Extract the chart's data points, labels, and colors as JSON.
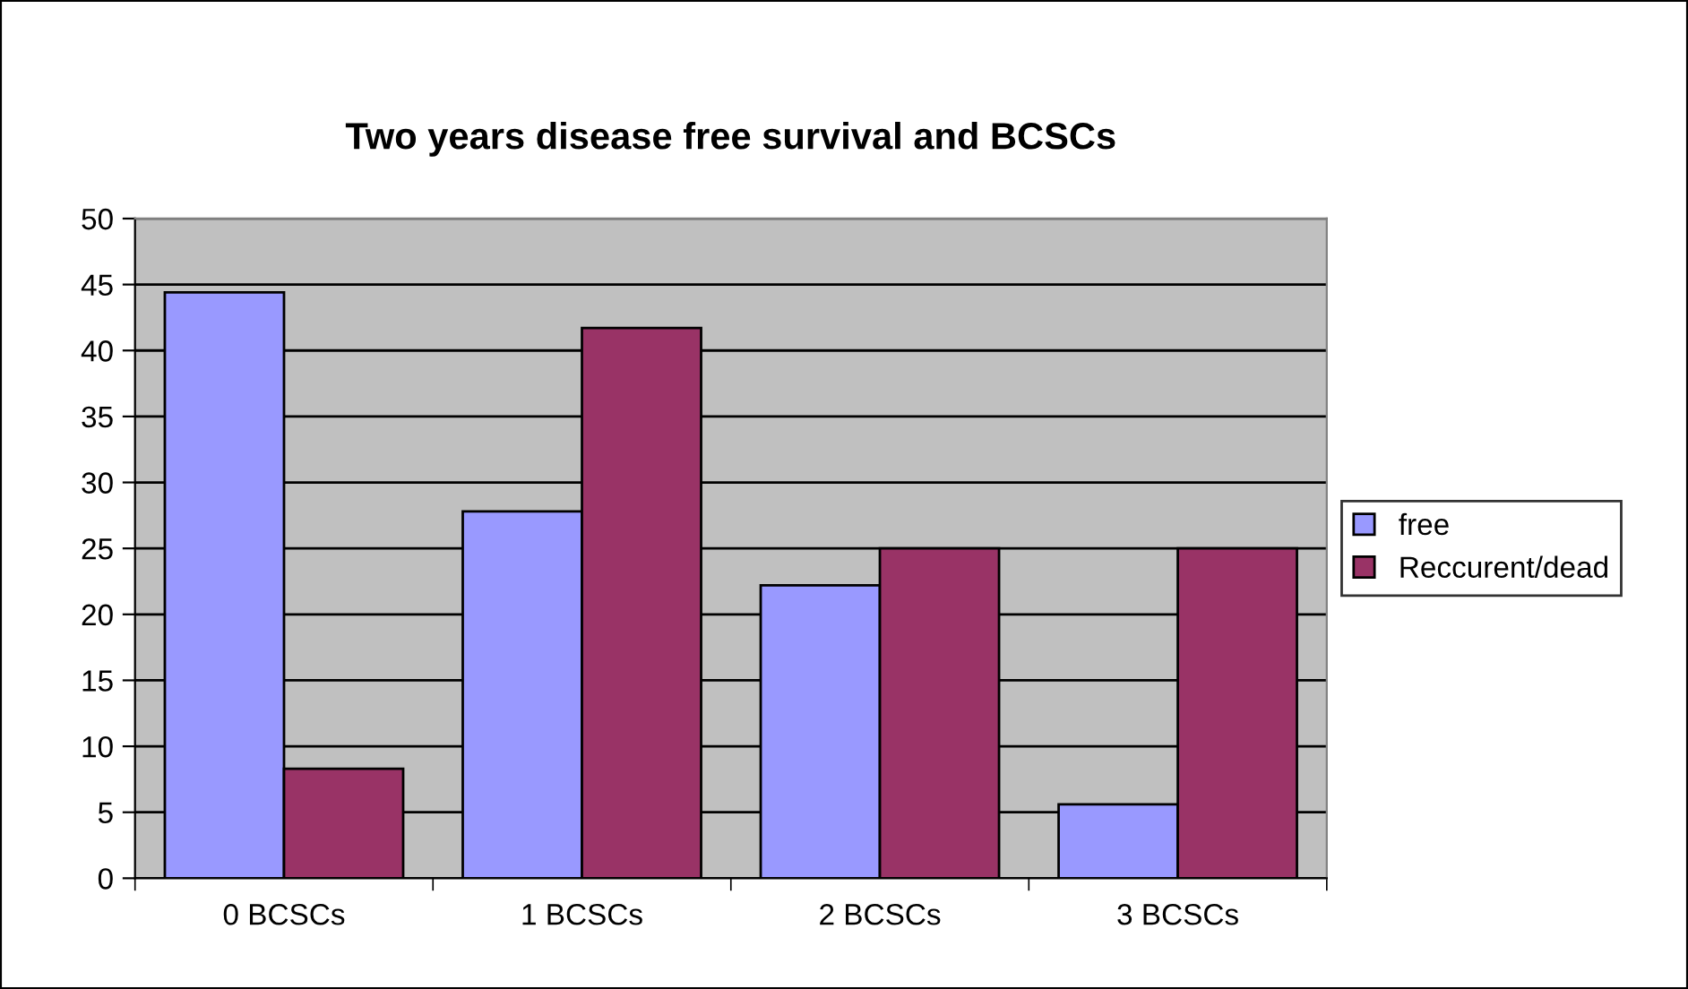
{
  "chart_data": {
    "type": "bar",
    "title": "Two years disease free survival and BCSCs",
    "categories": [
      "0 BCSCs",
      "1 BCSCs",
      "2 BCSCs",
      "3 BCSCs"
    ],
    "series": [
      {
        "name": "free",
        "color": "#9999ff",
        "values": [
          44.4,
          27.8,
          22.2,
          5.6
        ]
      },
      {
        "name": "Reccurent/dead",
        "color": "#993366",
        "values": [
          8.3,
          41.7,
          25,
          25
        ]
      }
    ],
    "ylim": [
      0,
      50
    ],
    "yticks": [
      0,
      5,
      10,
      15,
      20,
      25,
      30,
      35,
      40,
      45,
      50
    ],
    "grid": "y",
    "legend": "right"
  }
}
